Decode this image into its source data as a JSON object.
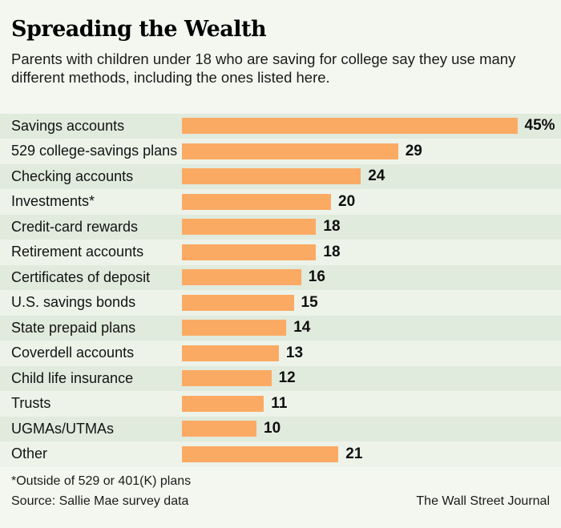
{
  "header": {
    "title": "Spreading the Wealth",
    "subtitle": "Parents with children under 18 who are saving for college say they use many different methods, including the ones listed here."
  },
  "chart_data": {
    "type": "bar",
    "orientation": "horizontal",
    "title": "Spreading the Wealth",
    "subtitle": "Parents with children under 18 who are saving for college say they use many different methods, including the ones listed here.",
    "categories": [
      "Savings accounts",
      "529 college-savings plans",
      "Checking accounts",
      "Investments*",
      "Credit-card rewards",
      "Retirement accounts",
      "Certificates of deposit",
      "U.S. savings bonds",
      "State prepaid plans",
      "Coverdell accounts",
      "Child life insurance",
      "Trusts",
      "UGMAs/UTMAs",
      "Other"
    ],
    "values": [
      45,
      29,
      24,
      20,
      18,
      18,
      16,
      15,
      14,
      13,
      12,
      11,
      10,
      21
    ],
    "display_values": [
      "45%",
      "29",
      "24",
      "20",
      "18",
      "18",
      "16",
      "15",
      "14",
      "13",
      "12",
      "11",
      "10",
      "21"
    ],
    "xlim": [
      0,
      45
    ],
    "grid": false,
    "legend": false,
    "value_labels_position": "end-of-bar"
  },
  "footer": {
    "footnote": "*Outside of 529 or 401(K) plans",
    "source": "Source: Sallie Mae survey data",
    "credit": "The Wall Street Journal"
  },
  "colors": {
    "background": "#f3f7f0",
    "row_dark": "#e0eadd",
    "row_light": "#edf3e9",
    "bar": "#fbaa64"
  }
}
